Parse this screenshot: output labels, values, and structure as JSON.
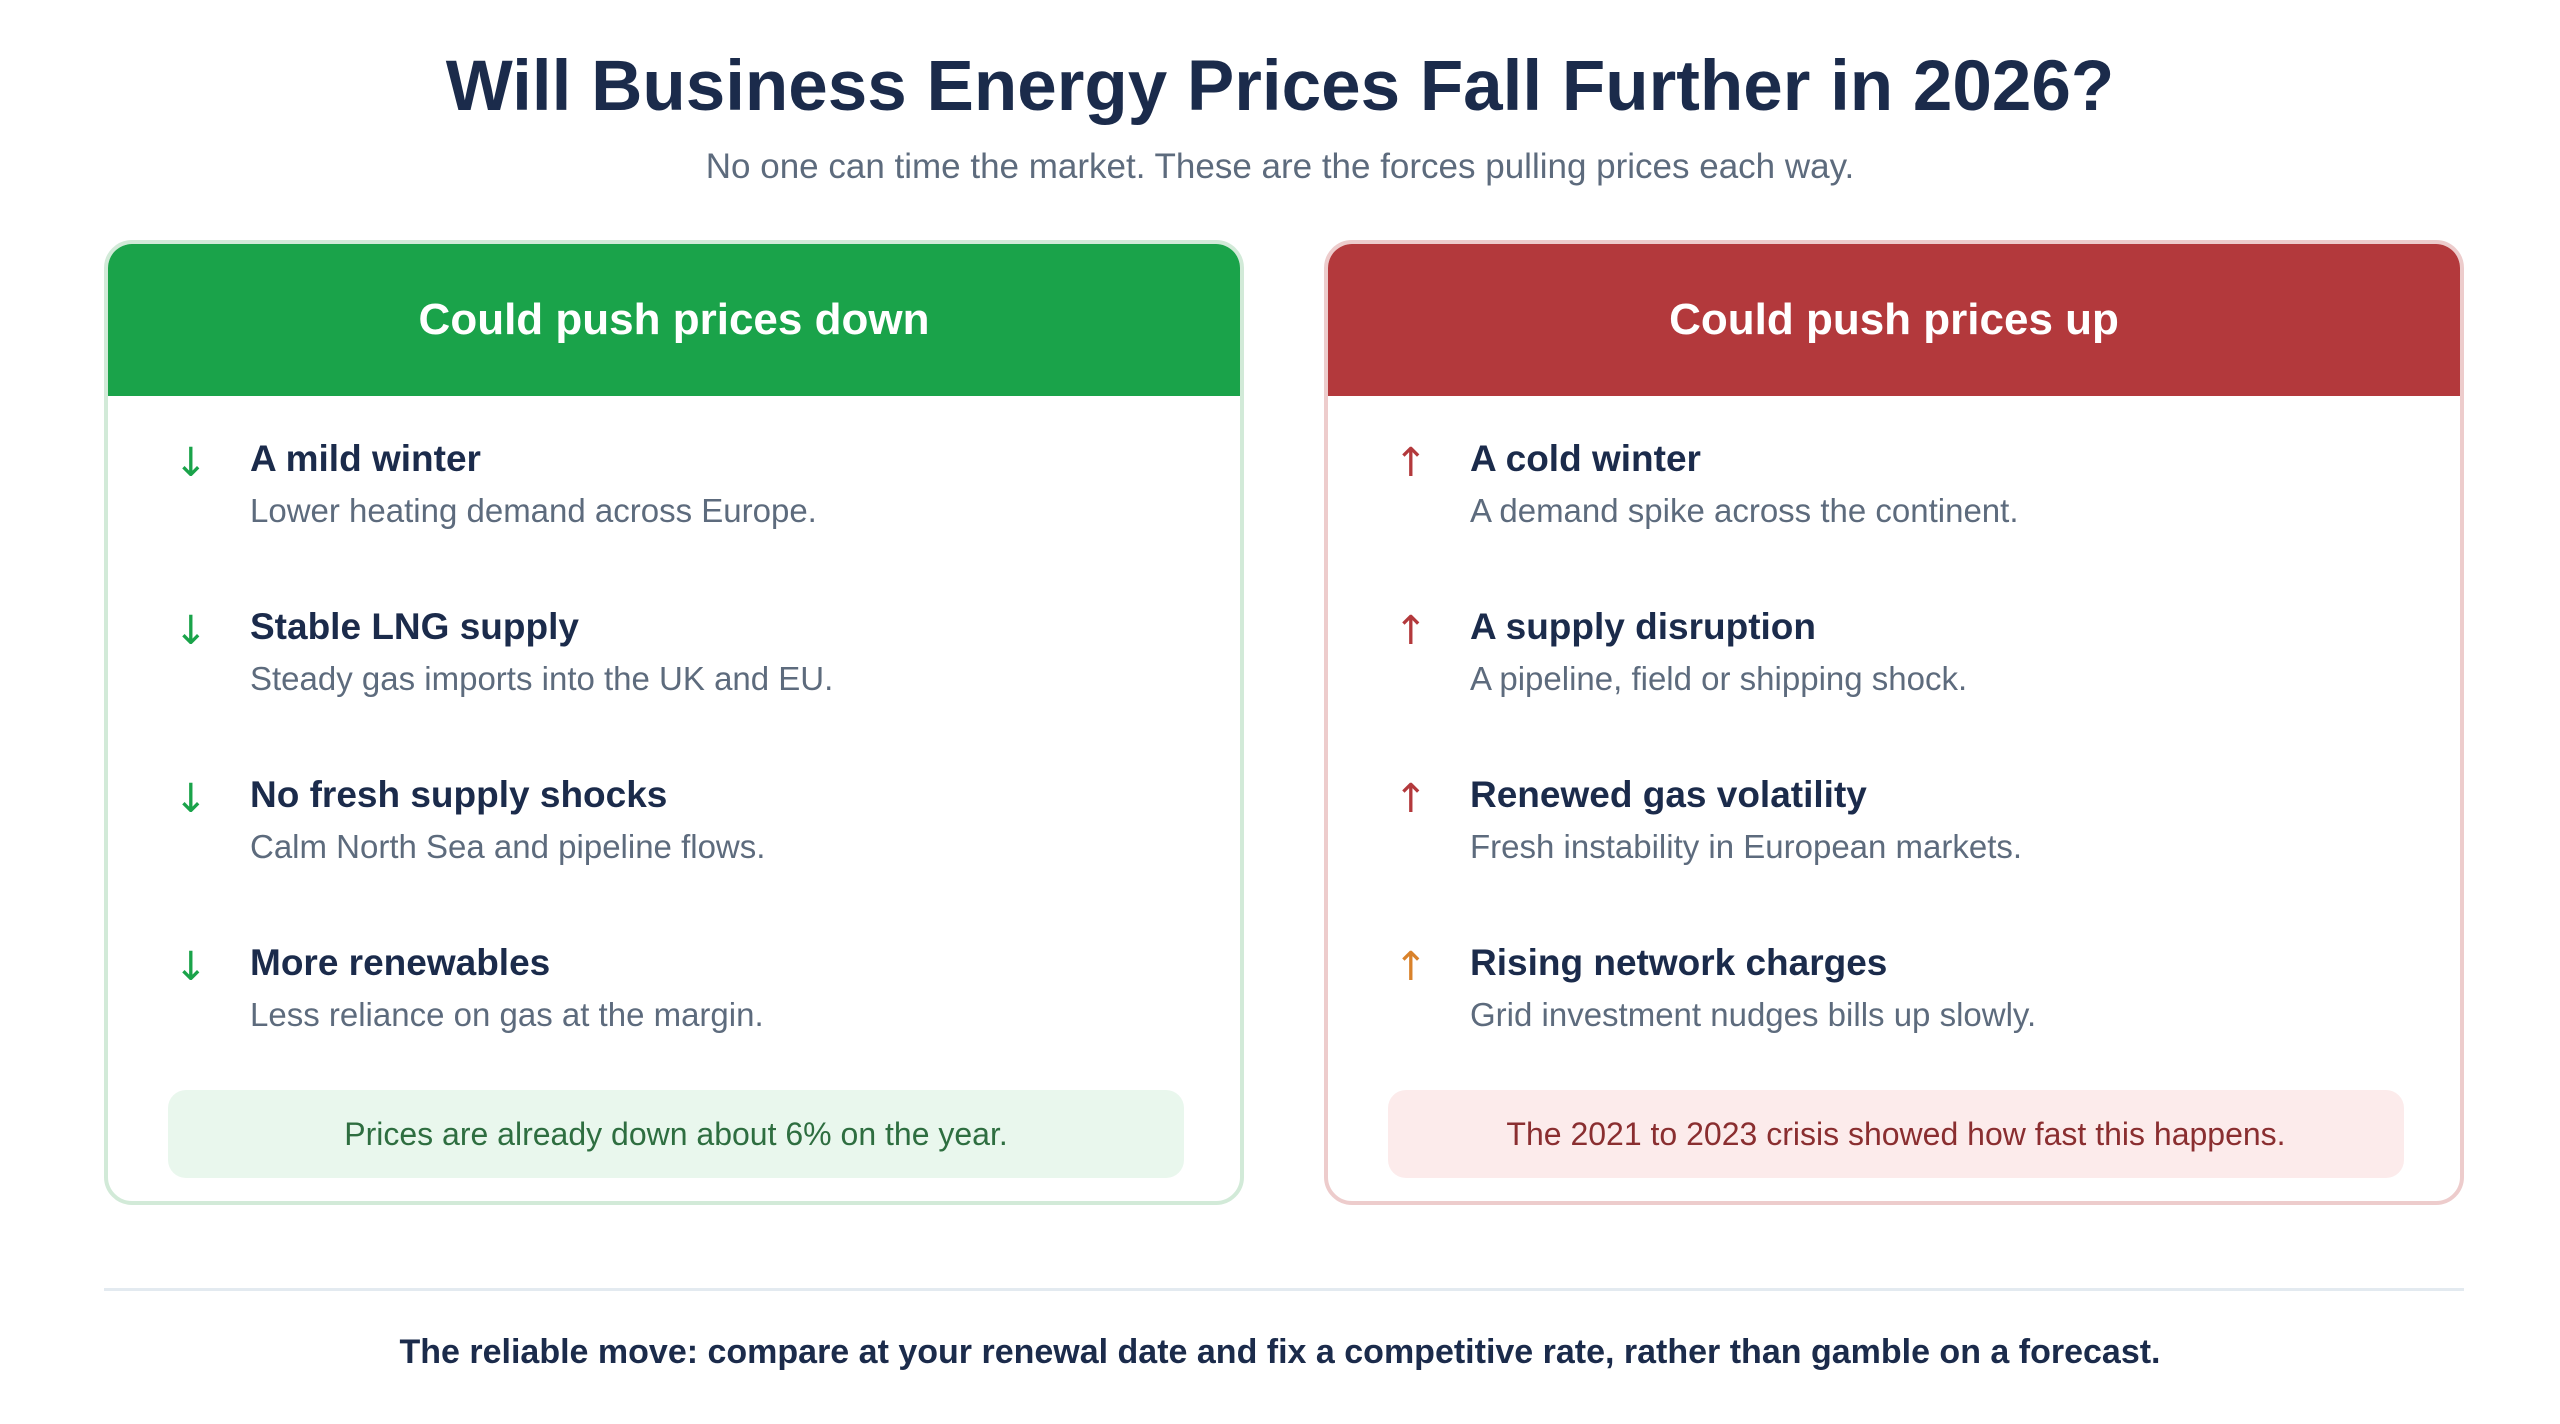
{
  "title": "Will Business Energy Prices Fall Further in 2026?",
  "subtitle": "No one can time the market. These are the forces pulling prices each way.",
  "colors": {
    "down_accent": "#1aa34a",
    "up_accent": "#b3393c",
    "up_soft_accent": "#d9822b",
    "text_dark": "#1b2b4b",
    "text_muted": "#5d6b7d"
  },
  "down_panel": {
    "header": "Could push prices down",
    "items": [
      {
        "arrow": "↓",
        "heading": "A mild winter",
        "desc": "Lower heating demand across Europe."
      },
      {
        "arrow": "↓",
        "heading": "Stable LNG supply",
        "desc": "Steady gas imports into the UK and EU."
      },
      {
        "arrow": "↓",
        "heading": "No fresh supply shocks",
        "desc": "Calm North Sea and pipeline flows."
      },
      {
        "arrow": "↓",
        "heading": "More renewables",
        "desc": "Less reliance on gas at the margin."
      }
    ],
    "note": "Prices are already down about 6% on the year."
  },
  "up_panel": {
    "header": "Could push prices up",
    "items": [
      {
        "arrow": "↑",
        "heading": "A cold winter",
        "desc": "A demand spike across the continent."
      },
      {
        "arrow": "↑",
        "heading": "A supply disruption",
        "desc": "A pipeline, field or shipping shock."
      },
      {
        "arrow": "↑",
        "heading": "Renewed gas volatility",
        "desc": "Fresh instability in European markets."
      },
      {
        "arrow": "↑",
        "heading": "Rising network charges",
        "desc": "Grid investment nudges bills up slowly."
      }
    ],
    "note": "The 2021 to 2023 crisis showed how fast this happens."
  },
  "footer": "The reliable move: compare at your renewal date and fix a competitive rate, rather than gamble on a forecast."
}
